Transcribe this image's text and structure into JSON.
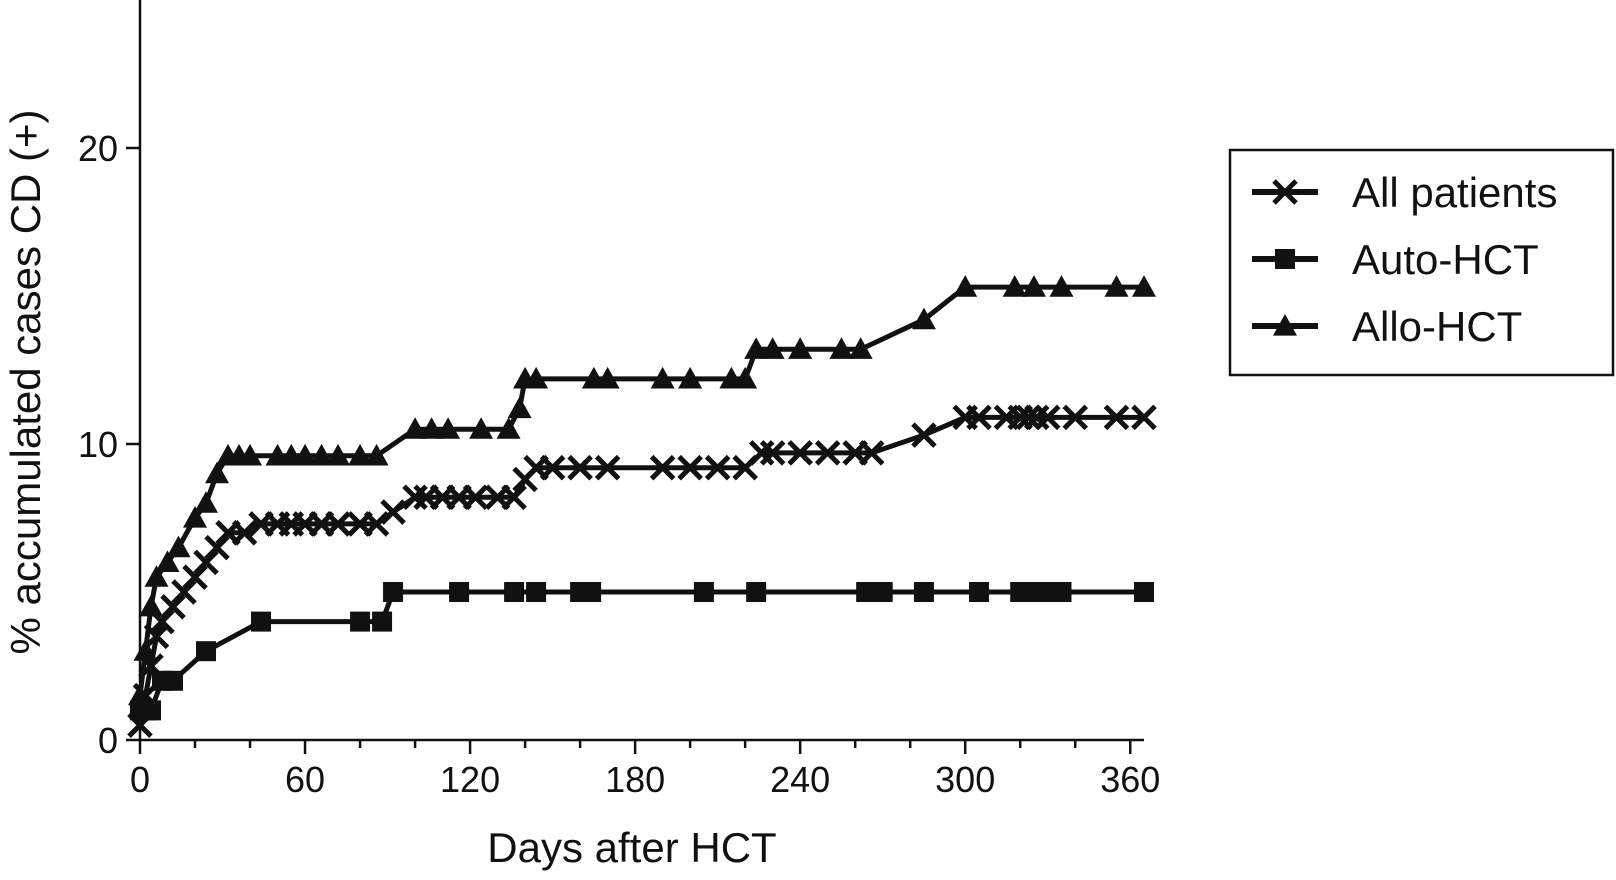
{
  "chart_data": {
    "type": "line",
    "xlabel": "Days after HCT",
    "ylabel": "% accumulated cases CD (+)",
    "xlim": [
      0,
      365
    ],
    "ylim": [
      0,
      25
    ],
    "xticks": [
      0,
      60,
      120,
      180,
      240,
      300,
      360
    ],
    "yticks": [
      0,
      10,
      20
    ],
    "legend_position": "right",
    "series": [
      {
        "name": "All patients",
        "marker": "x",
        "x": [
          0,
          2,
          4,
          6,
          8,
          12,
          16,
          20,
          24,
          28,
          32,
          38,
          44,
          50,
          55,
          60,
          66,
          72,
          80,
          86,
          92,
          100,
          104,
          110,
          116,
          122,
          130,
          136,
          140,
          144,
          150,
          160,
          170,
          190,
          200,
          210,
          220,
          226,
          230,
          240,
          250,
          260,
          266,
          285,
          300,
          305,
          315,
          320,
          323,
          326,
          330,
          340,
          355,
          365
        ],
        "y": [
          0.5,
          1.5,
          2.5,
          3.5,
          4.0,
          4.5,
          5.0,
          5.5,
          6.0,
          6.5,
          7.0,
          7.0,
          7.3,
          7.3,
          7.3,
          7.3,
          7.3,
          7.3,
          7.3,
          7.3,
          7.7,
          8.2,
          8.2,
          8.2,
          8.2,
          8.2,
          8.2,
          8.2,
          8.8,
          9.2,
          9.2,
          9.2,
          9.2,
          9.2,
          9.2,
          9.2,
          9.2,
          9.7,
          9.7,
          9.7,
          9.7,
          9.7,
          9.7,
          10.3,
          10.9,
          10.9,
          10.9,
          10.9,
          10.9,
          10.9,
          10.9,
          10.9,
          10.9,
          10.9
        ]
      },
      {
        "name": "Auto-HCT",
        "marker": "square",
        "x": [
          0,
          2,
          4,
          8,
          12,
          24,
          44,
          80,
          88,
          92,
          116,
          136,
          144,
          160,
          164,
          205,
          224,
          264,
          270,
          285,
          305,
          320,
          325,
          330,
          335,
          365
        ],
        "y": [
          1.0,
          1.0,
          1.0,
          2.0,
          2.0,
          3.0,
          4.0,
          4.0,
          4.0,
          5.0,
          5.0,
          5.0,
          5.0,
          5.0,
          5.0,
          5.0,
          5.0,
          5.0,
          5.0,
          5.0,
          5.0,
          5.0,
          5.0,
          5.0,
          5.0,
          5.0
        ]
      },
      {
        "name": "Allo-HCT",
        "marker": "triangle",
        "x": [
          0,
          2,
          4,
          6,
          10,
          14,
          20,
          24,
          28,
          32,
          36,
          40,
          50,
          55,
          60,
          66,
          72,
          80,
          86,
          100,
          106,
          112,
          124,
          134,
          138,
          140,
          144,
          165,
          170,
          190,
          200,
          215,
          220,
          224,
          230,
          240,
          255,
          262,
          285,
          300,
          318,
          325,
          335,
          355,
          365
        ],
        "y": [
          1.5,
          3.0,
          4.5,
          5.5,
          6.0,
          6.5,
          7.5,
          8.0,
          9.0,
          9.6,
          9.6,
          9.6,
          9.6,
          9.6,
          9.6,
          9.6,
          9.6,
          9.6,
          9.6,
          10.5,
          10.5,
          10.5,
          10.5,
          10.5,
          11.2,
          12.2,
          12.2,
          12.2,
          12.2,
          12.2,
          12.2,
          12.2,
          12.2,
          13.2,
          13.2,
          13.2,
          13.2,
          13.2,
          14.2,
          15.3,
          15.3,
          15.3,
          15.3,
          15.3,
          15.3
        ]
      }
    ]
  }
}
